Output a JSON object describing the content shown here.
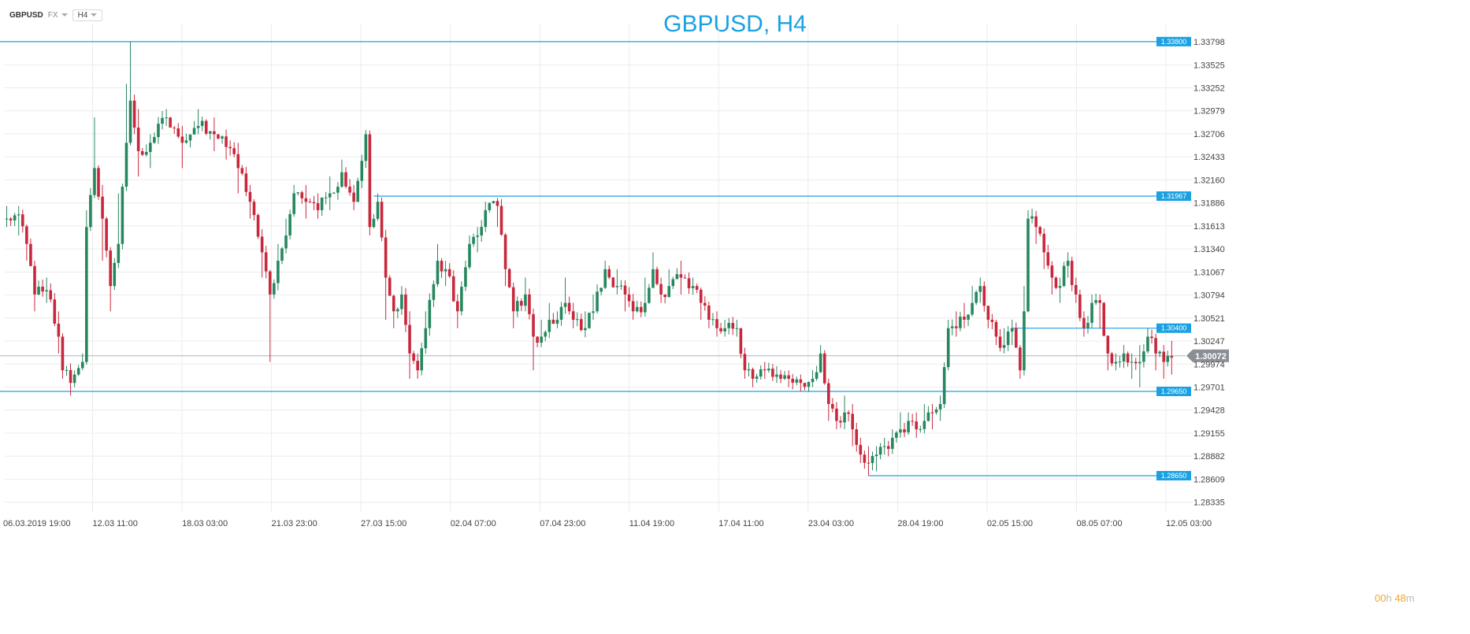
{
  "toolbar": {
    "symbol": "GBPUSD",
    "market": "FX",
    "timeframe": "H4"
  },
  "countdown": {
    "hours": "00",
    "h_unit": "h",
    "minutes": "48",
    "m_unit": "m"
  },
  "colors": {
    "up": "#26875f",
    "down": "#c8283c",
    "level": "#1ba1e2",
    "grid": "#ececec",
    "current": "#8a8f96",
    "title": "#1ba1e2"
  },
  "chart_data": {
    "type": "candlestick",
    "title": "GBPUSD, H4",
    "xlabel": "",
    "ylabel": "",
    "ylim": [
      1.2822,
      1.3392
    ],
    "y_ticks": [
      "1.33798",
      "1.33525",
      "1.33252",
      "1.32979",
      "1.32706",
      "1.32433",
      "1.32160",
      "1.31886",
      "1.31613",
      "1.31340",
      "1.31067",
      "1.30794",
      "1.30521",
      "1.30247",
      "1.29974",
      "1.29701",
      "1.29428",
      "1.29155",
      "1.28882",
      "1.28609",
      "1.28335"
    ],
    "x_tick_labels": [
      "06.03.2019  19:00",
      "12.03  11:00",
      "18.03  03:00",
      "21.03  23:00",
      "27.03  15:00",
      "02.04  07:00",
      "07.04  23:00",
      "11.04  19:00",
      "17.04  11:00",
      "23.04  03:00",
      "28.04  19:00",
      "02.05  15:00",
      "08.05  07:00",
      "12.05  03:00"
    ],
    "levels": [
      {
        "label": "1.33800",
        "value": 1.338,
        "start": 0
      },
      {
        "label": "1.31967",
        "value": 1.31967,
        "start": 92
      },
      {
        "label": "1.30400",
        "value": 1.304,
        "start": 252
      },
      {
        "label": "1.29650",
        "value": 1.2965,
        "start": 0
      },
      {
        "label": "1.28650",
        "value": 1.2865,
        "start": 216
      }
    ],
    "current_price": {
      "label": "1.30072",
      "value": 1.30072
    },
    "anchors": [
      [
        0,
        1.317,
        1.3185,
        1.316
      ],
      [
        3,
        1.3175,
        1.3185,
        1.315
      ],
      [
        5,
        1.314,
        1.3155,
        1.312
      ],
      [
        7,
        1.308,
        1.31,
        1.306
      ],
      [
        10,
        1.3085,
        1.31,
        1.307
      ],
      [
        13,
        1.303,
        1.306,
        1.301
      ],
      [
        14,
        1.299,
        1.3,
        1.298
      ],
      [
        16,
        1.2975,
        1.2985,
        1.296
      ],
      [
        17,
        1.2985,
        1.299,
        1.297
      ],
      [
        19,
        1.3,
        1.301,
        1.299
      ],
      [
        20,
        1.316,
        1.318,
        1.314
      ],
      [
        22,
        1.323,
        1.329,
        1.32
      ],
      [
        24,
        1.317,
        1.321,
        1.312
      ],
      [
        26,
        1.309,
        1.311,
        1.306
      ],
      [
        28,
        1.314,
        1.32,
        1.312
      ],
      [
        30,
        1.326,
        1.333,
        1.324
      ],
      [
        31,
        1.331,
        1.338,
        1.329
      ],
      [
        33,
        1.325,
        1.33,
        1.322
      ],
      [
        36,
        1.326,
        1.327,
        1.323
      ],
      [
        40,
        1.329,
        1.33,
        1.328
      ],
      [
        44,
        1.326,
        1.328,
        1.323
      ],
      [
        48,
        1.328,
        1.33,
        1.327
      ],
      [
        52,
        1.327,
        1.329,
        1.325
      ],
      [
        55,
        1.3255,
        1.327,
        1.324
      ],
      [
        58,
        1.323,
        1.326,
        1.32
      ],
      [
        61,
        1.319,
        1.321,
        1.317
      ],
      [
        64,
        1.313,
        1.315,
        1.31
      ],
      [
        66,
        1.308,
        1.31,
        1.3
      ],
      [
        68,
        1.312,
        1.314,
        1.311
      ],
      [
        70,
        1.315,
        1.317,
        1.313
      ],
      [
        72,
        1.32,
        1.321,
        1.318
      ],
      [
        75,
        1.319,
        1.321,
        1.317
      ],
      [
        78,
        1.318,
        1.32,
        1.317
      ],
      [
        81,
        1.32,
        1.322,
        1.318
      ],
      [
        84,
        1.3225,
        1.324,
        1.321
      ],
      [
        87,
        1.319,
        1.321,
        1.318
      ],
      [
        90,
        1.327,
        1.3275,
        1.324
      ],
      [
        91,
        1.316,
        1.319,
        1.315
      ],
      [
        93,
        1.319,
        1.32,
        1.318
      ],
      [
        95,
        1.31,
        1.312,
        1.305
      ],
      [
        97,
        1.306,
        1.308,
        1.304
      ],
      [
        99,
        1.308,
        1.309,
        1.307
      ],
      [
        101,
        1.301,
        1.306,
        1.298
      ],
      [
        103,
        1.299,
        1.301,
        1.298
      ],
      [
        105,
        1.304,
        1.306,
        1.303
      ],
      [
        108,
        1.312,
        1.314,
        1.31
      ],
      [
        110,
        1.311,
        1.312,
        1.309
      ],
      [
        113,
        1.306,
        1.308,
        1.304
      ],
      [
        116,
        1.314,
        1.315,
        1.312
      ],
      [
        118,
        1.315,
        1.316,
        1.313
      ],
      [
        120,
        1.318,
        1.319,
        1.317
      ],
      [
        123,
        1.3185,
        1.319,
        1.316
      ],
      [
        125,
        1.311,
        1.313,
        1.309
      ],
      [
        127,
        1.306,
        1.308,
        1.304
      ],
      [
        130,
        1.308,
        1.31,
        1.306
      ],
      [
        132,
        1.303,
        1.304,
        1.299
      ],
      [
        134,
        1.303,
        1.305,
        1.302
      ],
      [
        136,
        1.305,
        1.307,
        1.304
      ],
      [
        138,
        1.305,
        1.306,
        1.304
      ],
      [
        140,
        1.307,
        1.31,
        1.306
      ],
      [
        142,
        1.305,
        1.307,
        1.304
      ],
      [
        145,
        1.304,
        1.306,
        1.303
      ],
      [
        147,
        1.306,
        1.308,
        1.305
      ],
      [
        150,
        1.311,
        1.312,
        1.309
      ],
      [
        153,
        1.309,
        1.311,
        1.308
      ],
      [
        155,
        1.308,
        1.309,
        1.306
      ],
      [
        157,
        1.306,
        1.308,
        1.305
      ],
      [
        160,
        1.307,
        1.31,
        1.306
      ],
      [
        162,
        1.311,
        1.313,
        1.31
      ],
      [
        164,
        1.308,
        1.31,
        1.307
      ],
      [
        166,
        1.309,
        1.311,
        1.308
      ],
      [
        169,
        1.31,
        1.312,
        1.308
      ],
      [
        172,
        1.309,
        1.31,
        1.308
      ],
      [
        174,
        1.307,
        1.308,
        1.305
      ],
      [
        176,
        1.305,
        1.306,
        1.304
      ],
      [
        178,
        1.304,
        1.306,
        1.303
      ],
      [
        180,
        1.304,
        1.305,
        1.303
      ],
      [
        183,
        1.304,
        1.305,
        1.303
      ],
      [
        185,
        1.299,
        1.301,
        1.298
      ],
      [
        187,
        1.298,
        1.299,
        1.297
      ],
      [
        190,
        1.299,
        1.3,
        1.298
      ],
      [
        193,
        1.2985,
        1.2995,
        1.2975
      ],
      [
        196,
        1.298,
        1.299,
        1.297
      ],
      [
        199,
        1.2975,
        1.2985,
        1.2965
      ],
      [
        202,
        1.298,
        1.299,
        1.297
      ],
      [
        204,
        1.301,
        1.302,
        1.299
      ],
      [
        206,
        1.295,
        1.297,
        1.293
      ],
      [
        208,
        1.293,
        1.295,
        1.292
      ],
      [
        210,
        1.294,
        1.296,
        1.292
      ],
      [
        212,
        1.292,
        1.295,
        1.29
      ],
      [
        214,
        1.289,
        1.291,
        1.288
      ],
      [
        216,
        1.288,
        1.29,
        1.2865
      ],
      [
        218,
        1.289,
        1.29,
        1.287
      ],
      [
        220,
        1.29,
        1.291,
        1.289
      ],
      [
        222,
        1.291,
        1.292,
        1.29
      ],
      [
        224,
        1.292,
        1.294,
        1.291
      ],
      [
        226,
        1.293,
        1.294,
        1.292
      ],
      [
        228,
        1.292,
        1.294,
        1.291
      ],
      [
        230,
        1.293,
        1.295,
        1.292
      ],
      [
        232,
        1.294,
        1.295,
        1.292
      ],
      [
        234,
        1.295,
        1.296,
        1.293
      ],
      [
        236,
        1.304,
        1.305,
        1.302
      ],
      [
        238,
        1.304,
        1.306,
        1.303
      ],
      [
        240,
        1.305,
        1.307,
        1.304
      ],
      [
        242,
        1.307,
        1.309,
        1.306
      ],
      [
        244,
        1.309,
        1.31,
        1.307
      ],
      [
        246,
        1.305,
        1.306,
        1.304
      ],
      [
        248,
        1.303,
        1.305,
        1.302
      ],
      [
        250,
        1.302,
        1.304,
        1.301
      ],
      [
        252,
        1.304,
        1.305,
        1.302
      ],
      [
        254,
        1.299,
        1.302,
        1.298
      ],
      [
        255,
        1.306,
        1.309,
        1.304
      ],
      [
        256,
        1.317,
        1.318,
        1.315
      ],
      [
        258,
        1.316,
        1.317,
        1.314
      ],
      [
        260,
        1.313,
        1.315,
        1.311
      ],
      [
        262,
        1.31,
        1.311,
        1.308
      ],
      [
        264,
        1.309,
        1.31,
        1.307
      ],
      [
        266,
        1.312,
        1.313,
        1.31
      ],
      [
        268,
        1.308,
        1.31,
        1.307
      ],
      [
        270,
        1.304,
        1.306,
        1.303
      ],
      [
        272,
        1.307,
        1.308,
        1.305
      ],
      [
        274,
        1.307,
        1.308,
        1.304
      ],
      [
        276,
        1.301,
        1.303,
        1.299
      ],
      [
        278,
        1.3,
        1.301,
        1.299
      ],
      [
        280,
        1.301,
        1.302,
        1.3
      ],
      [
        282,
        1.3,
        1.301,
        1.298
      ],
      [
        284,
        1.3,
        1.302,
        1.297
      ],
      [
        286,
        1.303,
        1.304,
        1.301
      ],
      [
        288,
        1.301,
        1.303,
        1.299
      ],
      [
        290,
        1.3,
        1.302,
        1.298
      ],
      [
        292,
        1.3005,
        1.3025,
        1.2985
      ]
    ]
  }
}
